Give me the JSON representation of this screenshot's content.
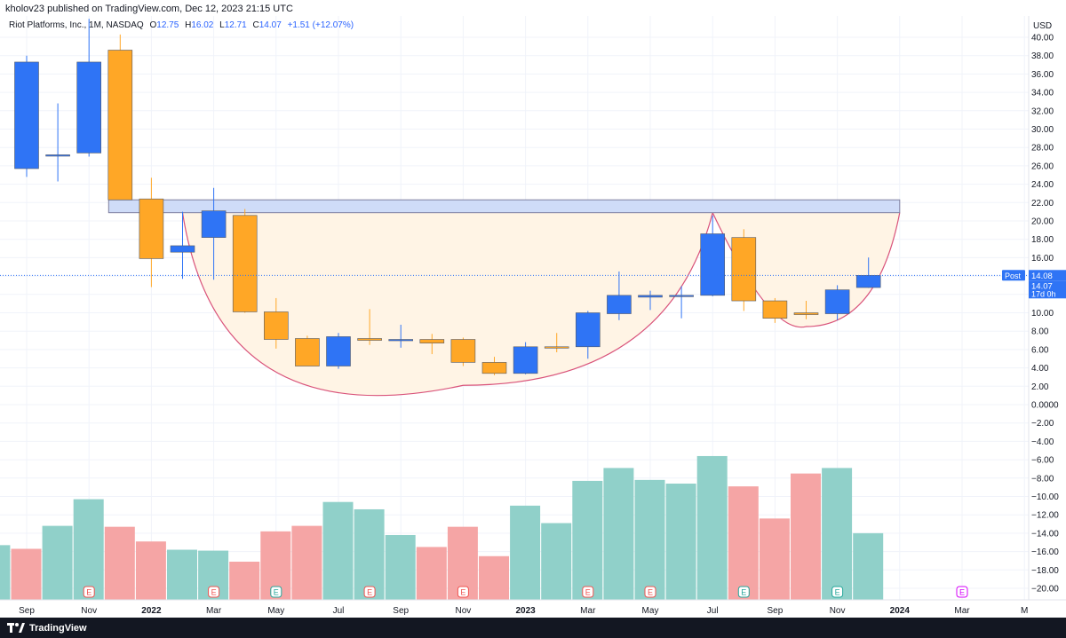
{
  "header": {
    "published": "kholov23 published on TradingView.com, Dec 12, 2023 21:15 UTC"
  },
  "legend": {
    "symbol": "Riot Platforms, Inc., 1M, NASDAQ",
    "open_key": "O",
    "open": "12.75",
    "high_key": "H",
    "high": "16.02",
    "low_key": "L",
    "low": "12.71",
    "close_key": "C",
    "close": "14.07",
    "change": "+1.51 (+12.07%)"
  },
  "axis": {
    "currency": "USD",
    "post_label": "Post",
    "post_price": "14.08",
    "last_price": "14.07",
    "countdown": "17d 0h"
  },
  "colors": {
    "up": "#2f74f5",
    "down": "#ffa726",
    "vol_up": "#90d0c9",
    "vol_down": "#f5a5a5",
    "resistance_fill": "#cfdcf8",
    "resistance_stroke": "#7f7f9f",
    "cup_fill": "#fff4e5",
    "cup_line": "#d9537a"
  },
  "footer": {
    "brand": "TradingView"
  },
  "chart_data": {
    "type": "candlestick",
    "title": "Riot Platforms, Inc., 1M, NASDAQ",
    "price_ticks": [
      "40.00",
      "38.00",
      "36.00",
      "34.00",
      "32.00",
      "30.00",
      "28.00",
      "26.00",
      "24.00",
      "22.00",
      "20.00",
      "18.00",
      "16.00",
      "14.00",
      "12.00",
      "10.00",
      "8.00",
      "6.00",
      "4.00",
      "2.00",
      "0.0000",
      "−2.00",
      "−4.00",
      "−6.00",
      "−8.00",
      "−10.00",
      "−12.00",
      "−14.00",
      "−16.00",
      "−18.00",
      "−20.00"
    ],
    "x_labels": [
      "Sep",
      "Nov",
      "2022",
      "Mar",
      "May",
      "Jul",
      "Sep",
      "Nov",
      "2023",
      "Mar",
      "May",
      "Jul",
      "Sep",
      "Nov",
      "2024",
      "Mar",
      "M"
    ],
    "candles": [
      {
        "date": "2021-09",
        "o": 25.7,
        "h": 38.0,
        "l": 24.8,
        "c": 37.3
      },
      {
        "date": "2021-10",
        "o": 27.2,
        "h": 32.8,
        "l": 24.3,
        "c": 27.2
      },
      {
        "date": "2021-11",
        "o": 27.4,
        "h": 42.0,
        "l": 27.0,
        "c": 37.3
      },
      {
        "date": "2021-12",
        "o": 38.6,
        "h": 40.3,
        "l": 22.3,
        "c": 22.3
      },
      {
        "date": "2022-01",
        "o": 22.4,
        "h": 24.7,
        "l": 12.8,
        "c": 15.9
      },
      {
        "date": "2022-02",
        "o": 16.6,
        "h": 21.0,
        "l": 13.7,
        "c": 17.3
      },
      {
        "date": "2022-03",
        "o": 18.2,
        "h": 23.6,
        "l": 13.6,
        "c": 21.1
      },
      {
        "date": "2022-04",
        "o": 20.6,
        "h": 21.3,
        "l": 10.0,
        "c": 10.1
      },
      {
        "date": "2022-05",
        "o": 10.1,
        "h": 11.6,
        "l": 6.1,
        "c": 7.1
      },
      {
        "date": "2022-06",
        "o": 7.2,
        "h": 7.5,
        "l": 4.2,
        "c": 4.2
      },
      {
        "date": "2022-07",
        "o": 4.2,
        "h": 7.8,
        "l": 3.9,
        "c": 7.4
      },
      {
        "date": "2022-08",
        "o": 7.2,
        "h": 10.4,
        "l": 6.5,
        "c": 7.0
      },
      {
        "date": "2022-09",
        "o": 7.0,
        "h": 8.7,
        "l": 6.2,
        "c": 7.1
      },
      {
        "date": "2022-10",
        "o": 7.1,
        "h": 7.7,
        "l": 5.5,
        "c": 6.7
      },
      {
        "date": "2022-11",
        "o": 7.1,
        "h": 7.3,
        "l": 4.2,
        "c": 4.6
      },
      {
        "date": "2022-12",
        "o": 4.6,
        "h": 5.2,
        "l": 3.2,
        "c": 3.4
      },
      {
        "date": "2023-01",
        "o": 3.4,
        "h": 6.8,
        "l": 3.3,
        "c": 6.3
      },
      {
        "date": "2023-02",
        "o": 6.3,
        "h": 7.8,
        "l": 5.7,
        "c": 6.2
      },
      {
        "date": "2023-03",
        "o": 6.3,
        "h": 10.2,
        "l": 5.0,
        "c": 10.0
      },
      {
        "date": "2023-04",
        "o": 9.9,
        "h": 14.5,
        "l": 9.2,
        "c": 11.9
      },
      {
        "date": "2023-05",
        "o": 11.7,
        "h": 12.4,
        "l": 10.3,
        "c": 11.9
      },
      {
        "date": "2023-06",
        "o": 11.9,
        "h": 12.9,
        "l": 9.4,
        "c": 11.9
      },
      {
        "date": "2023-07",
        "o": 11.9,
        "h": 20.6,
        "l": 11.8,
        "c": 18.6
      },
      {
        "date": "2023-08",
        "o": 18.2,
        "h": 19.1,
        "l": 10.2,
        "c": 11.3
      },
      {
        "date": "2023-09",
        "o": 11.3,
        "h": 11.6,
        "l": 8.9,
        "c": 9.4
      },
      {
        "date": "2023-10",
        "o": 10.0,
        "h": 11.3,
        "l": 9.3,
        "c": 9.8
      },
      {
        "date": "2023-11",
        "o": 9.9,
        "h": 13.0,
        "l": 9.2,
        "c": 12.5
      },
      {
        "date": "2023-12",
        "o": 12.75,
        "h": 16.02,
        "l": 12.71,
        "c": 14.07
      }
    ],
    "volume_bars": [
      {
        "date": "2021-08",
        "dir": "up",
        "level": -15.3
      },
      {
        "date": "2021-09",
        "dir": "down",
        "level": -15.7
      },
      {
        "date": "2021-10",
        "dir": "up",
        "level": -13.2
      },
      {
        "date": "2021-11",
        "dir": "up",
        "level": -10.3
      },
      {
        "date": "2021-12",
        "dir": "down",
        "level": -13.3
      },
      {
        "date": "2022-01",
        "dir": "down",
        "level": -14.9
      },
      {
        "date": "2022-02",
        "dir": "up",
        "level": -15.8
      },
      {
        "date": "2022-03",
        "dir": "up",
        "level": -15.9
      },
      {
        "date": "2022-04",
        "dir": "down",
        "level": -17.1
      },
      {
        "date": "2022-05",
        "dir": "down",
        "level": -13.8
      },
      {
        "date": "2022-06",
        "dir": "down",
        "level": -13.2
      },
      {
        "date": "2022-07",
        "dir": "up",
        "level": -10.6
      },
      {
        "date": "2022-08",
        "dir": "up",
        "level": -11.4
      },
      {
        "date": "2022-09",
        "dir": "up",
        "level": -14.2
      },
      {
        "date": "2022-10",
        "dir": "down",
        "level": -15.5
      },
      {
        "date": "2022-11",
        "dir": "down",
        "level": -13.3
      },
      {
        "date": "2022-12",
        "dir": "down",
        "level": -16.5
      },
      {
        "date": "2023-01",
        "dir": "up",
        "level": -11.0
      },
      {
        "date": "2023-02",
        "dir": "up",
        "level": -12.9
      },
      {
        "date": "2023-03",
        "dir": "up",
        "level": -8.3
      },
      {
        "date": "2023-04",
        "dir": "up",
        "level": -6.9
      },
      {
        "date": "2023-05",
        "dir": "up",
        "level": -8.2
      },
      {
        "date": "2023-06",
        "dir": "up",
        "level": -8.6
      },
      {
        "date": "2023-07",
        "dir": "up",
        "level": -5.6
      },
      {
        "date": "2023-08",
        "dir": "down",
        "level": -8.9
      },
      {
        "date": "2023-09",
        "dir": "down",
        "level": -12.4
      },
      {
        "date": "2023-10",
        "dir": "down",
        "level": -7.5
      },
      {
        "date": "2023-11",
        "dir": "up",
        "level": -6.9
      },
      {
        "date": "2023-12",
        "dir": "up",
        "level": -14.0
      }
    ],
    "resistance_zone": {
      "from": "2021-12",
      "to": "2024-01",
      "low": 20.9,
      "high": 22.3
    },
    "cup_pattern": {
      "left_rim": {
        "date": "2022-02",
        "price": 20.9
      },
      "bottom": {
        "date": "2022-11",
        "price": 2.1
      },
      "right_rim": {
        "date": "2023-07",
        "price": 20.9
      },
      "handle_bottom": {
        "date": "2023-10",
        "price": 8.5
      },
      "handle_end": {
        "date": "2024-01",
        "price": 20.9
      }
    },
    "earnings_markers": [
      {
        "date": "2021-11",
        "type": "E",
        "style": "red"
      },
      {
        "date": "2022-03",
        "type": "E",
        "style": "red"
      },
      {
        "date": "2022-05",
        "type": "E",
        "style": "green"
      },
      {
        "date": "2022-08",
        "type": "E",
        "style": "red"
      },
      {
        "date": "2022-11",
        "type": "E",
        "style": "red"
      },
      {
        "date": "2023-03",
        "type": "E",
        "style": "red"
      },
      {
        "date": "2023-05",
        "type": "E",
        "style": "red"
      },
      {
        "date": "2023-08",
        "type": "E",
        "style": "green"
      },
      {
        "date": "2023-11",
        "type": "E",
        "style": "green"
      },
      {
        "date": "2024-03",
        "type": "E",
        "style": "upcoming"
      }
    ],
    "last_price_line": 14.07
  }
}
